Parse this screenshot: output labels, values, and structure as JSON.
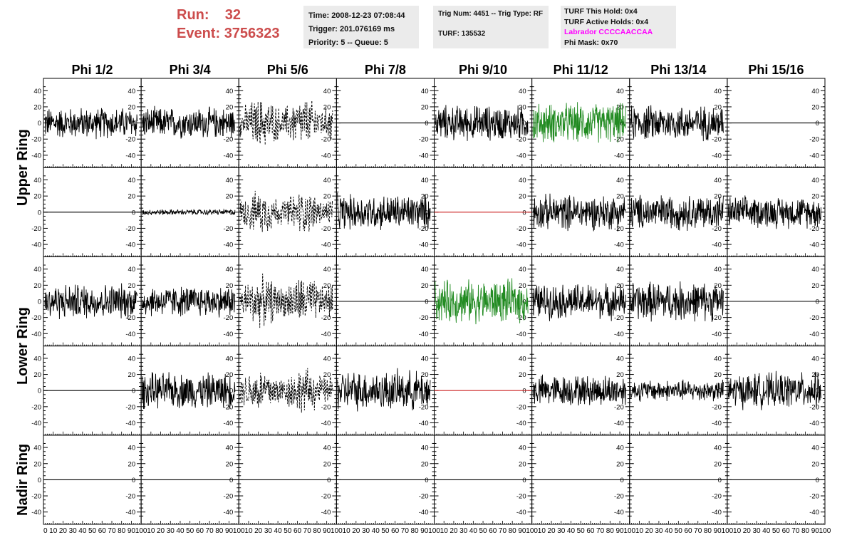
{
  "header": {
    "run_label": "Run:",
    "run_value": "32",
    "event_label": "Event:",
    "event_value": "3756323",
    "time": "Time: 2008-12-23 07:08:44",
    "trigger": "Trigger: 201.076169 ms",
    "priority": "Priority: 5 -- Queue: 5",
    "trig_num": "Trig Num: 4451 -- Trig Type: RF",
    "turf": "TURF: 135532",
    "turf_this_hold": "TURF This Hold: 0x4",
    "turf_active_holds": "TURF Active Holds: 0x4",
    "labrador": "Labrador CCCCAACCAA",
    "phi_mask": "Phi Mask: 0x70",
    "labrador_color": "#ff00ff",
    "run_color": "#cc4c4c"
  },
  "columns": [
    "Phi 1/2",
    "Phi 3/4",
    "Phi 5/6",
    "Phi 7/8",
    "Phi 9/10",
    "Phi 11/12",
    "Phi 13/14",
    "Phi 15/16"
  ],
  "rows": [
    "Upper Ring",
    "Upper Ring",
    "Lower Ring",
    "Lower Ring",
    "Nadir Ring"
  ],
  "ring_labels": [
    "Upper Ring",
    "Lower Ring",
    "Nadir Ring"
  ],
  "y_ticks": [
    "40",
    "20",
    "0",
    "-20",
    "-40"
  ],
  "x_ticks": [
    "0",
    "10",
    "20",
    "30",
    "40",
    "50",
    "60",
    "70",
    "80",
    "90",
    "100"
  ],
  "chart_data": {
    "type": "line",
    "grid": false,
    "x_range": [
      0,
      100
    ],
    "y_range": [
      -50,
      50
    ],
    "panels": [
      {
        "row": 0,
        "col": 0,
        "style": "noise",
        "amplitude": 22,
        "color": "#000000"
      },
      {
        "row": 0,
        "col": 1,
        "style": "noise",
        "amplitude": 22,
        "color": "#000000"
      },
      {
        "row": 0,
        "col": 2,
        "style": "dashed-burst",
        "amplitude": 35,
        "color": "#000000"
      },
      {
        "row": 0,
        "col": 3,
        "style": "flat",
        "amplitude": 0,
        "color": "#000000"
      },
      {
        "row": 0,
        "col": 4,
        "style": "noise",
        "amplitude": 25,
        "color": "#000000"
      },
      {
        "row": 0,
        "col": 5,
        "style": "noise",
        "amplitude": 28,
        "color": "#228b22"
      },
      {
        "row": 0,
        "col": 6,
        "style": "noise",
        "amplitude": 25,
        "color": "#000000"
      },
      {
        "row": 0,
        "col": 7,
        "style": "flat",
        "amplitude": 0,
        "color": "#000000"
      },
      {
        "row": 1,
        "col": 0,
        "style": "flat",
        "amplitude": 0,
        "color": "#000000"
      },
      {
        "row": 1,
        "col": 1,
        "style": "noise",
        "amplitude": 4,
        "color": "#000000"
      },
      {
        "row": 1,
        "col": 2,
        "style": "dashed-burst",
        "amplitude": 30,
        "color": "#000000"
      },
      {
        "row": 1,
        "col": 3,
        "style": "noise",
        "amplitude": 25,
        "color": "#000000"
      },
      {
        "row": 1,
        "col": 4,
        "style": "flat",
        "amplitude": 0,
        "color": "#cc2222"
      },
      {
        "row": 1,
        "col": 5,
        "style": "noise",
        "amplitude": 25,
        "color": "#000000"
      },
      {
        "row": 1,
        "col": 6,
        "style": "noise",
        "amplitude": 25,
        "color": "#000000"
      },
      {
        "row": 1,
        "col": 7,
        "style": "noise",
        "amplitude": 22,
        "color": "#000000"
      },
      {
        "row": 2,
        "col": 0,
        "style": "noise",
        "amplitude": 25,
        "color": "#000000"
      },
      {
        "row": 2,
        "col": 1,
        "style": "noise",
        "amplitude": 22,
        "color": "#000000"
      },
      {
        "row": 2,
        "col": 2,
        "style": "dashed-burst",
        "amplitude": 35,
        "color": "#000000"
      },
      {
        "row": 2,
        "col": 3,
        "style": "flat",
        "amplitude": 0,
        "color": "#000000"
      },
      {
        "row": 2,
        "col": 4,
        "style": "noise",
        "amplitude": 30,
        "color": "#228b22"
      },
      {
        "row": 2,
        "col": 5,
        "style": "noise",
        "amplitude": 25,
        "color": "#000000"
      },
      {
        "row": 2,
        "col": 6,
        "style": "noise",
        "amplitude": 28,
        "color": "#000000"
      },
      {
        "row": 2,
        "col": 7,
        "style": "flat",
        "amplitude": 0,
        "color": "#000000"
      },
      {
        "row": 3,
        "col": 0,
        "style": "flat",
        "amplitude": 0,
        "color": "#000000"
      },
      {
        "row": 3,
        "col": 1,
        "style": "noise",
        "amplitude": 25,
        "color": "#000000"
      },
      {
        "row": 3,
        "col": 2,
        "style": "dashed-burst",
        "amplitude": 32,
        "color": "#000000"
      },
      {
        "row": 3,
        "col": 3,
        "style": "noise",
        "amplitude": 28,
        "color": "#000000"
      },
      {
        "row": 3,
        "col": 4,
        "style": "flat",
        "amplitude": 0,
        "color": "#cc2222"
      },
      {
        "row": 3,
        "col": 5,
        "style": "noise",
        "amplitude": 22,
        "color": "#000000"
      },
      {
        "row": 3,
        "col": 6,
        "style": "noise",
        "amplitude": 15,
        "color": "#000000"
      },
      {
        "row": 3,
        "col": 7,
        "style": "noise",
        "amplitude": 25,
        "color": "#000000"
      },
      {
        "row": 4,
        "col": 0,
        "style": "flat",
        "amplitude": 0,
        "color": "#000000"
      },
      {
        "row": 4,
        "col": 1,
        "style": "flat",
        "amplitude": 0,
        "color": "#000000"
      },
      {
        "row": 4,
        "col": 2,
        "style": "flat",
        "amplitude": 0,
        "color": "#000000"
      },
      {
        "row": 4,
        "col": 3,
        "style": "flat",
        "amplitude": 0,
        "color": "#000000"
      },
      {
        "row": 4,
        "col": 4,
        "style": "flat",
        "amplitude": 0,
        "color": "#000000"
      },
      {
        "row": 4,
        "col": 5,
        "style": "flat",
        "amplitude": 0,
        "color": "#000000"
      },
      {
        "row": 4,
        "col": 6,
        "style": "flat",
        "amplitude": 0,
        "color": "#000000"
      },
      {
        "row": 4,
        "col": 7,
        "style": "flat",
        "amplitude": 0,
        "color": "#000000"
      }
    ]
  }
}
